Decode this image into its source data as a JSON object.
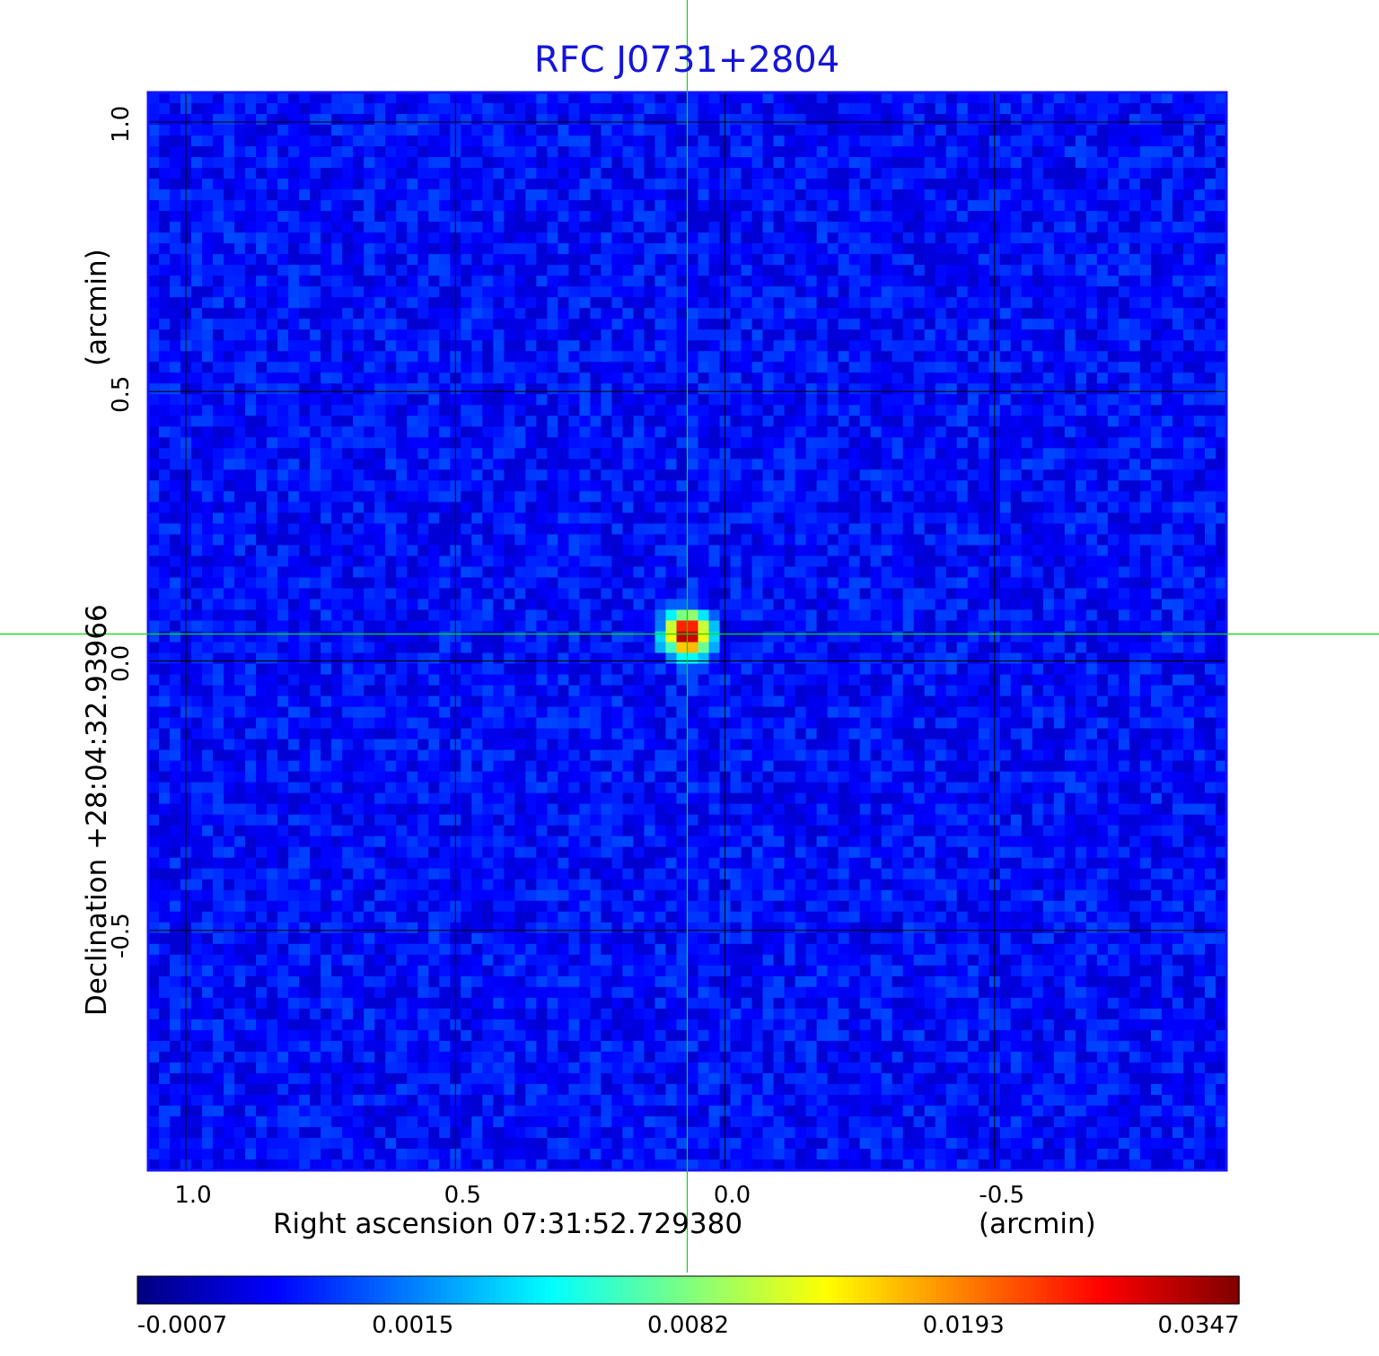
{
  "chart_data": {
    "type": "heatmap",
    "title": "RFC J0731+2804",
    "xlabel": "Right ascension  07:31:52.729380",
    "xlabel_unit": "(arcmin)",
    "ylabel": "Declination  +28:04:32.93966",
    "ylabel_unit": "(arcmin)",
    "x_axis": {
      "range": [
        1.07,
        -0.93
      ],
      "reversed": true,
      "ticks": [
        1.0,
        0.5,
        0.0,
        -0.5
      ],
      "tick_labels": [
        "1.0",
        "0.5",
        "0.0",
        "-0.5"
      ]
    },
    "y_axis": {
      "range": [
        -0.945,
        1.055
      ],
      "ticks": [
        1.0,
        0.5,
        0.0,
        -0.5
      ],
      "tick_labels": [
        "1.0",
        "0.5",
        "0.0",
        "-0.5"
      ]
    },
    "grid": true,
    "crosshair": {
      "x": 0.07,
      "y": 0.05,
      "color": "#00e000"
    },
    "source_peak": {
      "x": 0.07,
      "y": 0.05,
      "value": 0.0347
    },
    "background_level": -0.0002,
    "colormap": "jet",
    "colorbar": {
      "position": "bottom",
      "tick_labels": [
        "-0.0007",
        "0.0015",
        "0.0082",
        "0.0193",
        "0.0347"
      ],
      "tick_values": [
        -0.0007,
        0.0015,
        0.0082,
        0.0193,
        0.0347
      ],
      "min": -0.0007,
      "max": 0.0347
    }
  }
}
